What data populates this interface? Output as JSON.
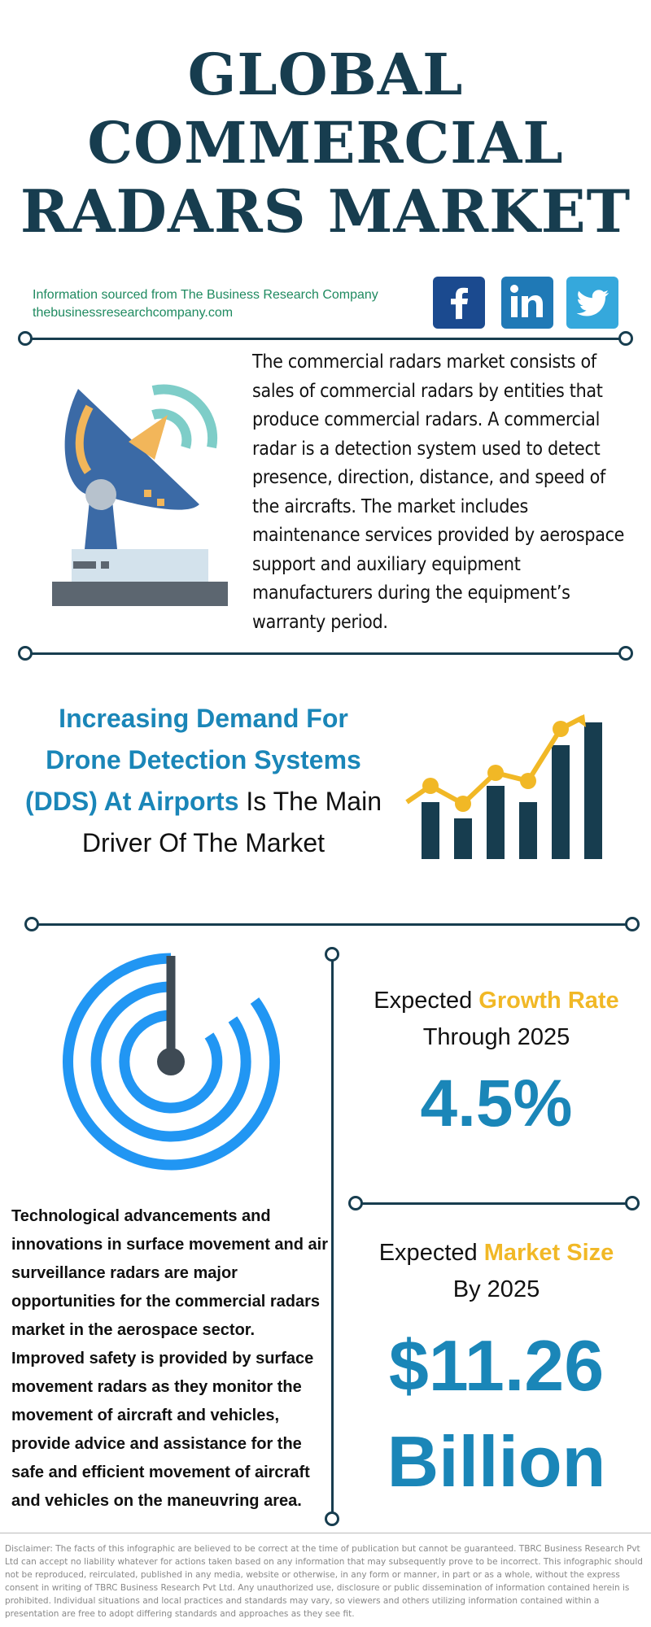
{
  "title": {
    "line1": "GLOBAL",
    "line2": "COMMERCIAL",
    "line3": "RADARS MARKET"
  },
  "source": {
    "line1": "Information sourced from The Business Research Company",
    "line2": "thebusinessresearchcompany.com"
  },
  "social": [
    "facebook-icon",
    "linkedin-icon",
    "twitter-icon"
  ],
  "intro": "The commercial radars market consists of sales of commercial radars by entities that produce commercial radars. A commercial radar is a detection system used to detect presence, direction, distance, and speed of the aircrafts. The market includes maintenance services provided by aerospace support and auxiliary equipment manufacturers during the equipment’s warranty period.",
  "driver": {
    "highlight": "Increasing Demand For Drone Detection Systems (DDS) At Airports",
    "rest": " Is The Main Driver Of The Market"
  },
  "growth": {
    "label_pre": "Expected ",
    "label_hl": "Growth Rate",
    "label_post": "Through 2025",
    "value": "4.5%"
  },
  "market_size": {
    "label_pre": "Expected ",
    "label_hl": "Market Size",
    "label_post": "By 2025",
    "value_line1": "$11.26",
    "value_line2": "Billion"
  },
  "opportunity": "Technological advancements and innovations in surface movement and air surveillance radars are major opportunities for the commercial radars market in the aerospace sector. Improved safety is provided by surface movement radars as they monitor the movement of aircraft and vehicles, provide advice and assistance for the safe and efficient movement of aircraft and vehicles on the maneuvring area.",
  "disclaimer": "Disclaimer: The facts of this infographic are believed to be correct at the time of publication but cannot be guaranteed. TBRC Business Research Pvt Ltd can accept no liability whatever for actions taken based on any information that may subsequently prove to be incorrect. This infographic should not be reproduced, reirculated, published in any media, website or otherwise, in any form or manner, in part or as a whole, without the express consent in writing of TBRC Business Research Pvt Ltd. Any unauthorized use, disclosure or public dissemination of information contained herein is prohibited. Individual situations and local practices and standards may vary, so viewers and others utilizing information contained within a presentation are free to adopt differing standards and approaches as they see fit.",
  "colors": {
    "navy": "#173d4f",
    "blue": "#1a86b8",
    "gold": "#f1b826",
    "green": "#1f8a60",
    "radar_blue": "#2196f3"
  }
}
